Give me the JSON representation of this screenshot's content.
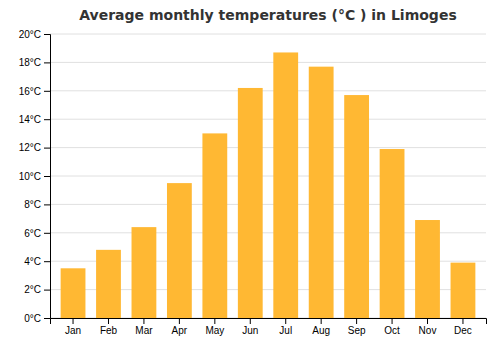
{
  "chart_data": {
    "type": "bar",
    "title": "Average monthly temperatures (°C ) in Limoges",
    "categories": [
      "Jan",
      "Feb",
      "Mar",
      "Apr",
      "May",
      "Jun",
      "Jul",
      "Aug",
      "Sep",
      "Oct",
      "Nov",
      "Dec"
    ],
    "values": [
      3.5,
      4.8,
      6.4,
      9.5,
      13.0,
      16.2,
      18.7,
      17.7,
      15.7,
      11.9,
      6.9,
      3.9
    ],
    "color": "#FFB833",
    "ylim": [
      0,
      20
    ],
    "yticks": [
      {
        "value": 0,
        "label": "0°C"
      },
      {
        "value": 2,
        "label": "2°C"
      },
      {
        "value": 4,
        "label": "4°C"
      },
      {
        "value": 6,
        "label": "6°C"
      },
      {
        "value": 8,
        "label": "8°C"
      },
      {
        "value": 10,
        "label": "10°C"
      },
      {
        "value": 12,
        "label": "12°C"
      },
      {
        "value": 14,
        "label": "14°C"
      },
      {
        "value": 16,
        "label": "16°C"
      },
      {
        "value": 18,
        "label": "18°C"
      },
      {
        "value": 20,
        "label": "20°C"
      }
    ],
    "grid": true
  }
}
